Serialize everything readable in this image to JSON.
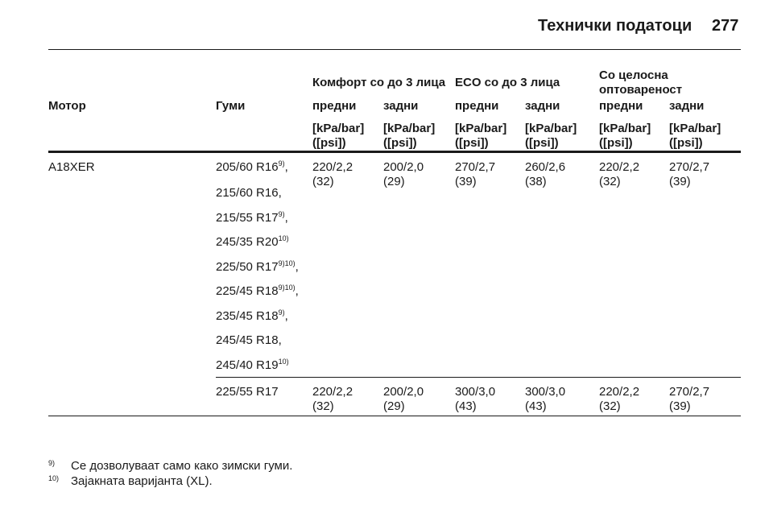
{
  "header": {
    "title": "Технички податоци",
    "page": "277"
  },
  "table": {
    "group_headers": [
      "Комфорт со до 3 лица",
      "ECO со до 3 лица",
      "Со целосна оптовареност"
    ],
    "columns": [
      "Мотор",
      "Гуми",
      "предни",
      "задни",
      "предни",
      "задни",
      "предни",
      "задни"
    ],
    "units": [
      {
        "bar": "[kPa/bar]",
        "psi": "([psi])"
      },
      {
        "bar": "[kPa/bar]",
        "psi": "([psi])"
      },
      {
        "bar": "[kPa/bar]",
        "psi": "([psi])"
      },
      {
        "bar": "[kPa/bar]",
        "psi": "([psi])"
      },
      {
        "bar": "[kPa/bar]",
        "psi": "([psi])"
      },
      {
        "bar": "[kPa/bar]",
        "psi": "([psi])"
      }
    ],
    "groups": [
      {
        "engine": "A18XER",
        "tyres": [
          {
            "text": "205/60 R16",
            "note": "9)",
            "punct": ","
          },
          {
            "text": "215/60 R16,"
          },
          {
            "text": "215/55 R17",
            "note": "9)",
            "punct": ","
          },
          {
            "text": "245/35 R20",
            "note": "10)"
          },
          {
            "text": "225/50 R17",
            "note": "9)10)",
            "punct": ","
          },
          {
            "text": "225/45 R18",
            "note": "9)10)",
            "punct": ","
          },
          {
            "text": "235/45 R18",
            "note": "9)",
            "punct": ","
          },
          {
            "text": "245/45 R18,"
          },
          {
            "text": "245/40 R19",
            "note": "10)"
          }
        ],
        "values": [
          {
            "bar": "220/2,2",
            "psi": "(32)"
          },
          {
            "bar": "200/2,0",
            "psi": "(29)"
          },
          {
            "bar": "270/2,7",
            "psi": "(39)"
          },
          {
            "bar": "260/2,6",
            "psi": "(38)"
          },
          {
            "bar": "220/2,2",
            "psi": "(32)"
          },
          {
            "bar": "270/2,7",
            "psi": "(39)"
          }
        ]
      },
      {
        "tyres": [
          {
            "text": "225/55 R17"
          }
        ],
        "values": [
          {
            "bar": "220/2,2",
            "psi": "(32)"
          },
          {
            "bar": "200/2,0",
            "psi": "(29)"
          },
          {
            "bar": "300/3,0",
            "psi": "(43)"
          },
          {
            "bar": "300/3,0",
            "psi": "(43)"
          },
          {
            "bar": "220/2,2",
            "psi": "(32)"
          },
          {
            "bar": "270/2,7",
            "psi": "(39)"
          }
        ]
      }
    ]
  },
  "footnotes": [
    {
      "mark": "9)",
      "text": "Се дозволуваат само како зимски гуми."
    },
    {
      "mark": "10)",
      "text": "Зајакната варијанта (XL)."
    }
  ]
}
